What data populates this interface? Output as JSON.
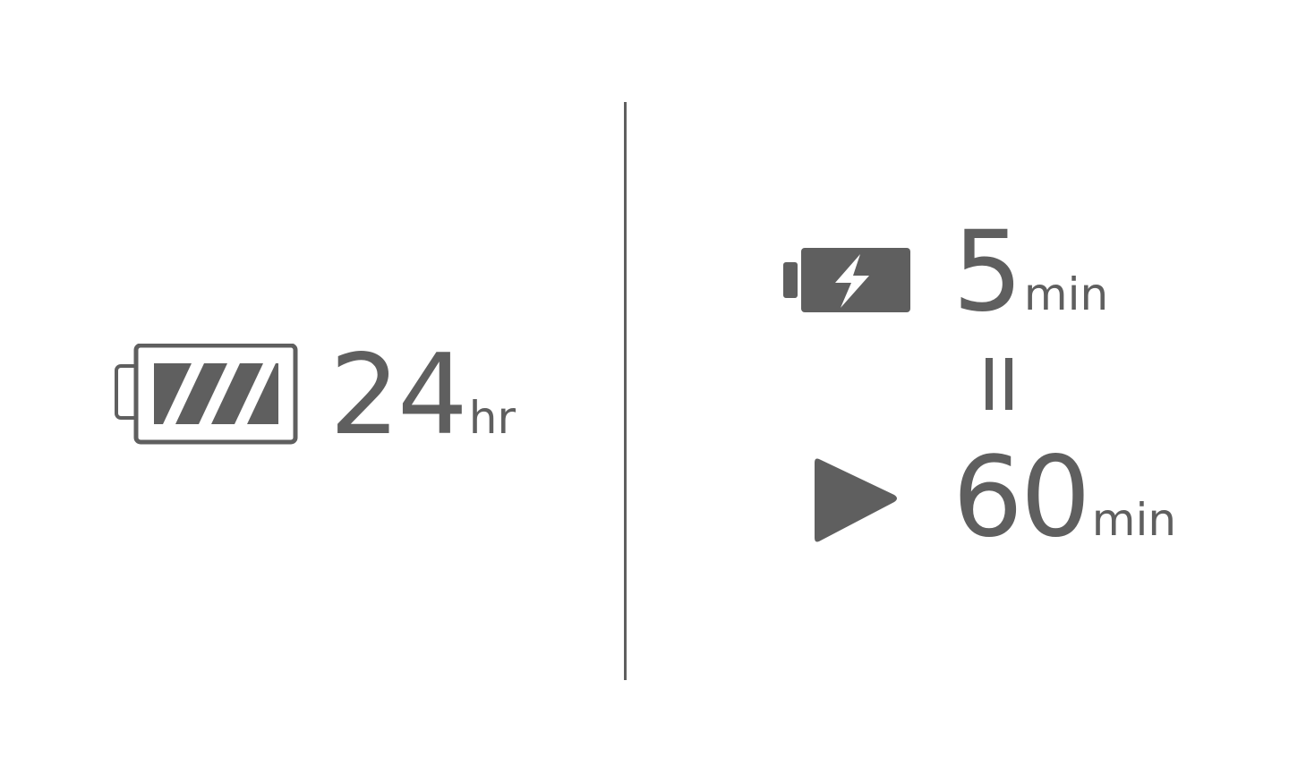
{
  "battery_life": {
    "icon": "battery-full-icon",
    "value": "24",
    "unit": "hr"
  },
  "quick_charge": {
    "charge_icon": "battery-charging-icon",
    "charge_value": "5",
    "charge_unit": "min",
    "equals_icon": "equals-icon",
    "play_icon": "play-icon",
    "play_value": "60",
    "play_unit": "min"
  },
  "colors": {
    "foreground": "#5f5f5f",
    "background": "#ffffff"
  }
}
